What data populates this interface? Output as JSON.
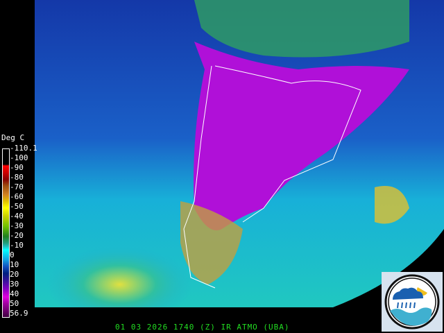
{
  "legend": {
    "title": "Deg C",
    "ticks": [
      "-110.1",
      "-100",
      "-90",
      "-80",
      "-70",
      "-60",
      "-50",
      "-40",
      "-30",
      "-20",
      "-10",
      "0",
      "10",
      "20",
      "30",
      "40",
      "50",
      "56.9"
    ]
  },
  "caption": "01 03 2026 1740 (Z) IR  ATMO (UBA)",
  "logo": {
    "text": "ATMO (UBA)",
    "icon": "cloud-rain-sun-wave-icon"
  },
  "colors": {
    "caption": "#22dd22",
    "ocean_cold": "#0a2a8a",
    "continent": "#c000e0",
    "clouds_warm": "#e0d020"
  }
}
